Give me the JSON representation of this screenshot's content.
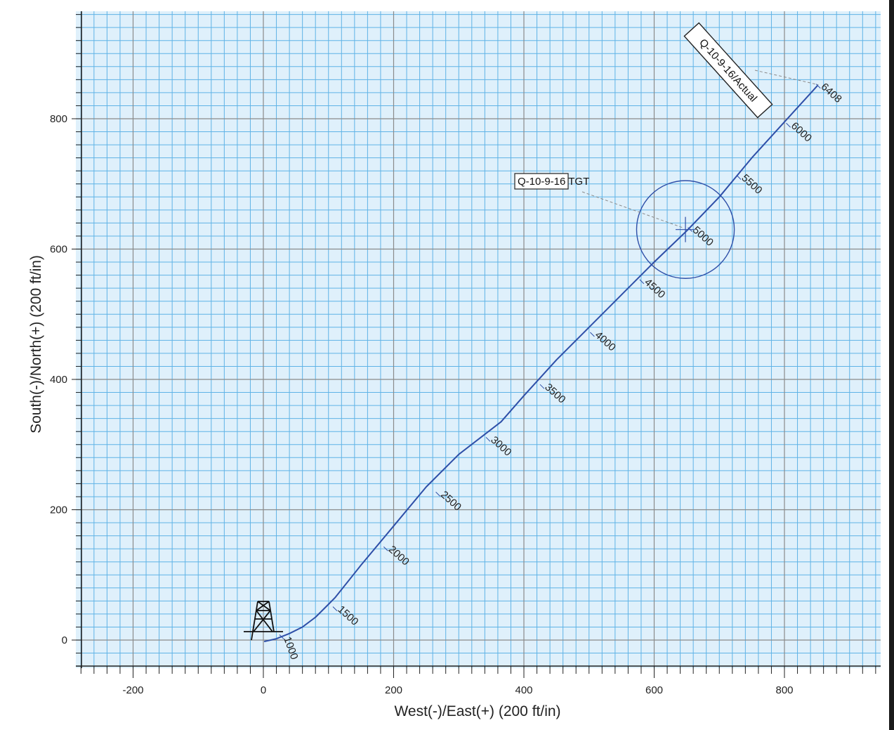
{
  "chart_data": {
    "type": "line",
    "xlabel": "West(-)/East(+) (200 ft/in)",
    "ylabel": "South(-)/North(+) (200 ft/in)",
    "xlim": [
      -280,
      950
    ],
    "ylim": [
      -40,
      960
    ],
    "x_ticks": [
      -200,
      0,
      200,
      400,
      600,
      800
    ],
    "y_ticks": [
      0,
      200,
      400,
      600,
      800
    ],
    "x_tick_labels": [
      "-200",
      "0",
      "200",
      "400",
      "600",
      "800"
    ],
    "y_tick_labels": [
      "0",
      "200",
      "400",
      "600",
      "800"
    ],
    "grid": true,
    "grid_minor_step": 20,
    "grid_major_step": 200,
    "colors": {
      "background": "#dff0fb",
      "grid_minor": "#5fb3e6",
      "grid_major": "#8a8a8a",
      "path": "#2e4fa8",
      "axis": "#222222"
    },
    "series": [
      {
        "name": "Q-10-9-16/Actual",
        "x": [
          2,
          20,
          40,
          60,
          80,
          100,
          110,
          150,
          200,
          250,
          300,
          365,
          400,
          450,
          500,
          550,
          600,
          650,
          700,
          750,
          800,
          850
        ],
        "y": [
          -2,
          2,
          10,
          20,
          35,
          55,
          65,
          115,
          175,
          235,
          285,
          335,
          375,
          430,
          480,
          530,
          580,
          628,
          680,
          740,
          795,
          850
        ]
      }
    ],
    "md_labels": [
      {
        "text": "1000",
        "x": 28,
        "y": 5
      },
      {
        "text": "1500",
        "x": 110,
        "y": 48
      },
      {
        "text": "2000",
        "x": 188,
        "y": 140
      },
      {
        "text": "2500",
        "x": 268,
        "y": 224
      },
      {
        "text": "3000",
        "x": 345,
        "y": 308
      },
      {
        "text": "3500",
        "x": 428,
        "y": 389
      },
      {
        "text": "4000",
        "x": 505,
        "y": 469
      },
      {
        "text": "4500",
        "x": 581,
        "y": 550
      },
      {
        "text": "5000",
        "x": 655,
        "y": 630
      },
      {
        "text": "5500",
        "x": 730,
        "y": 710
      },
      {
        "text": "6000",
        "x": 806,
        "y": 790
      },
      {
        "text": "6408",
        "x": 852,
        "y": 850
      }
    ],
    "target": {
      "name": "Q-10-9-16 TGT",
      "x": 648,
      "y": 630,
      "radius": 75
    },
    "annotations": [
      {
        "text": "Q-10-9-16 TGT",
        "anchor_x": 648,
        "anchor_y": 630
      },
      {
        "text": "Q-10-9-16/Actual",
        "anchor_x": 850,
        "anchor_y": 850
      }
    ]
  }
}
